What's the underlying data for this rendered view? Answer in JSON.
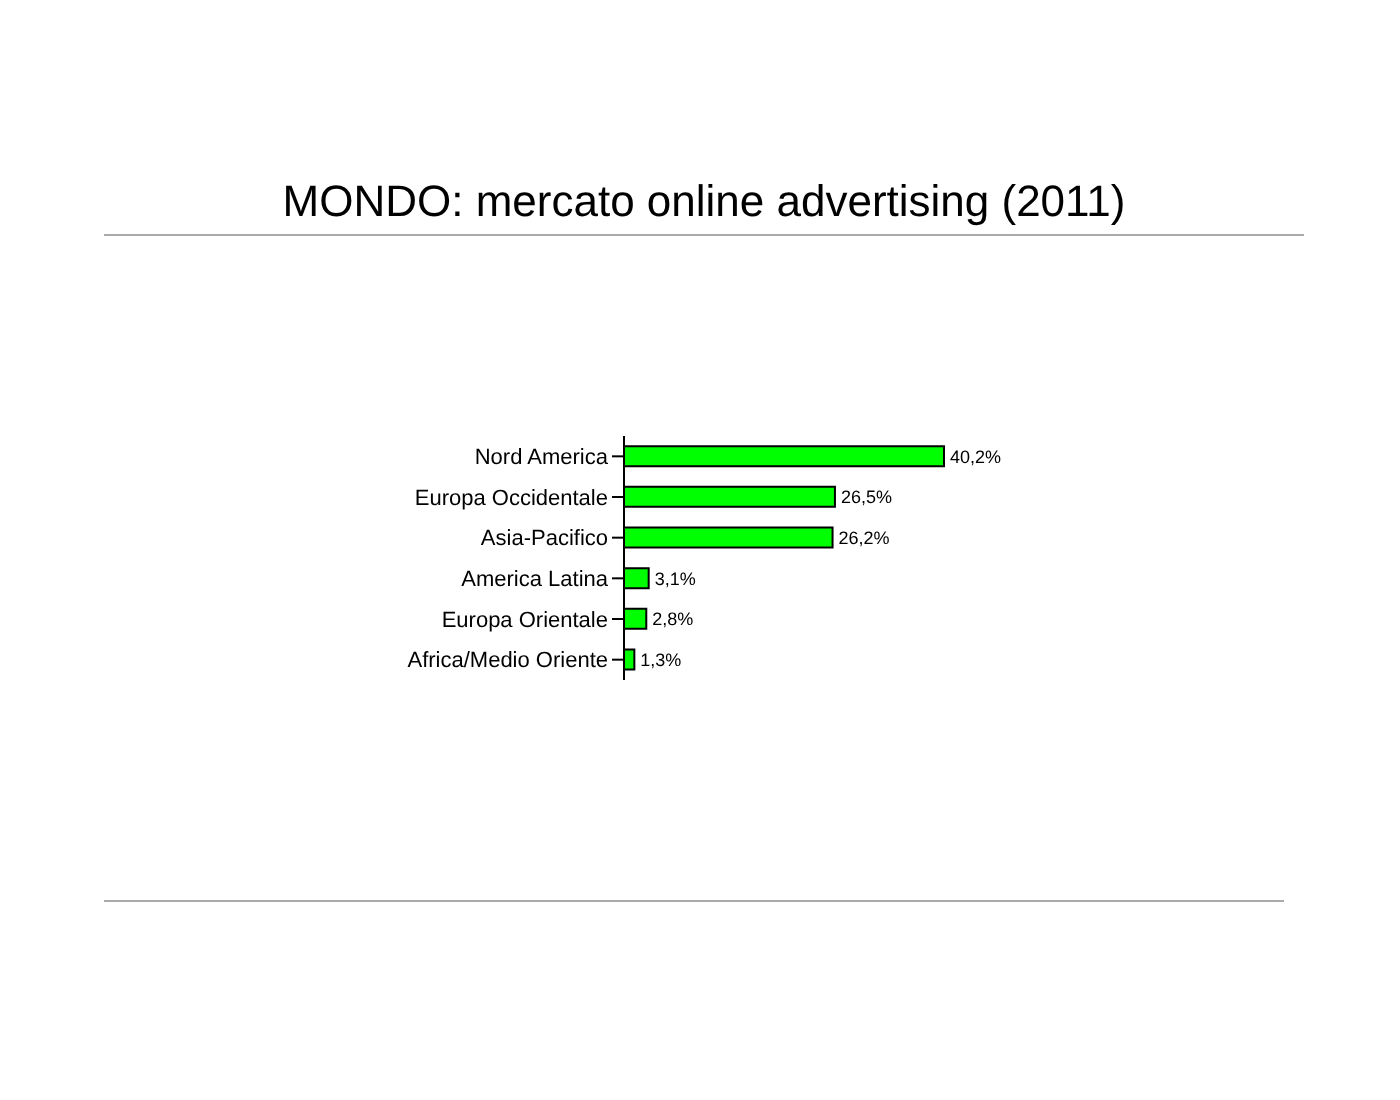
{
  "chart_data": {
    "type": "bar",
    "orientation": "horizontal",
    "title": "MONDO: mercato online advertising (2011)",
    "categories": [
      "Nord America",
      "Europa Occidentale",
      "Asia-Pacifico",
      "America Latina",
      "Europa Orientale",
      "Africa/Medio Oriente"
    ],
    "values": [
      40.2,
      26.5,
      26.2,
      3.1,
      2.8,
      1.3
    ],
    "value_labels": [
      "40,2%",
      "26,5%",
      "26,2%",
      "3,1%",
      "2,8%",
      "1,3%"
    ],
    "color": "#00ff00"
  }
}
